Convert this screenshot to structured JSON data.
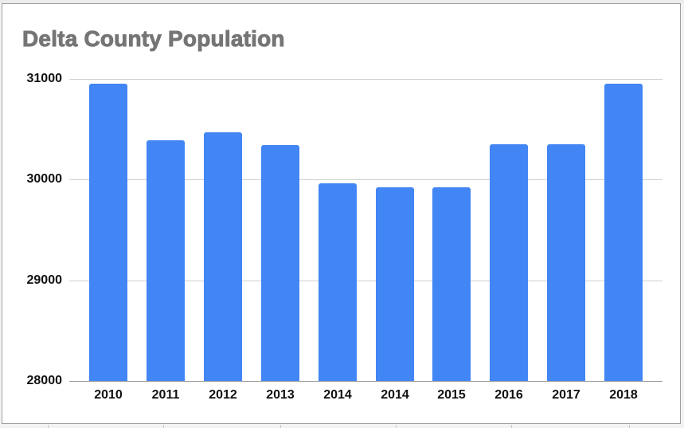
{
  "chart_data": {
    "type": "bar",
    "title": "Delta County Population",
    "xlabel": "",
    "ylabel": "",
    "categories": [
      "2010",
      "2011",
      "2012",
      "2013",
      "2014",
      "2014",
      "2015",
      "2016",
      "2017",
      "2018"
    ],
    "values": [
      30952,
      30390,
      30471,
      30346,
      29960,
      29921,
      29921,
      30354,
      30354,
      30952
    ],
    "ylim": [
      28000,
      31000
    ],
    "yticks": [
      "31000",
      "30000",
      "29000",
      "28000"
    ],
    "grid": true,
    "legend": "none",
    "bar_color": "#4285f4",
    "title_color": "#757575"
  }
}
